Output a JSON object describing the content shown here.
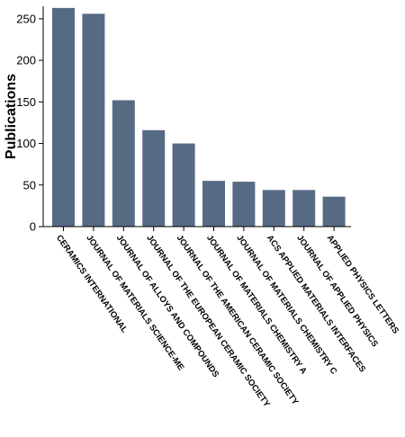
{
  "chart_data": {
    "type": "bar",
    "title": "",
    "xlabel": "",
    "ylabel": "Publications",
    "ylim": [
      0,
      265
    ],
    "yticks": [
      0,
      50,
      100,
      150,
      200,
      250
    ],
    "bar_color": "#566a84",
    "grid": false,
    "categories": [
      "CERAMICS INTERNATIONAL",
      "JOURNAL OF MATERIALS SCIENCE-ME",
      "JOURNAL OF ALLOYS AND COMPOUNDS",
      "JOURNAL OF THE EUROPEAN CERAMIC SOCIETY",
      "JOURNAL OF THE AMERICAN CERAMIC SOCIETY",
      "JOURNAL OF MATERIALS CHEMISTRY A",
      "JOURNAL OF MATERIALS CHEMISTRY C",
      "ACS APPLIED MATERIALS INTERFACES",
      "JOURNAL OF APPLIED PHYSICS",
      "APPLIED PHYSICS LETTERS"
    ],
    "values": [
      263,
      256,
      152,
      116,
      100,
      55,
      54,
      44,
      44,
      36
    ]
  }
}
